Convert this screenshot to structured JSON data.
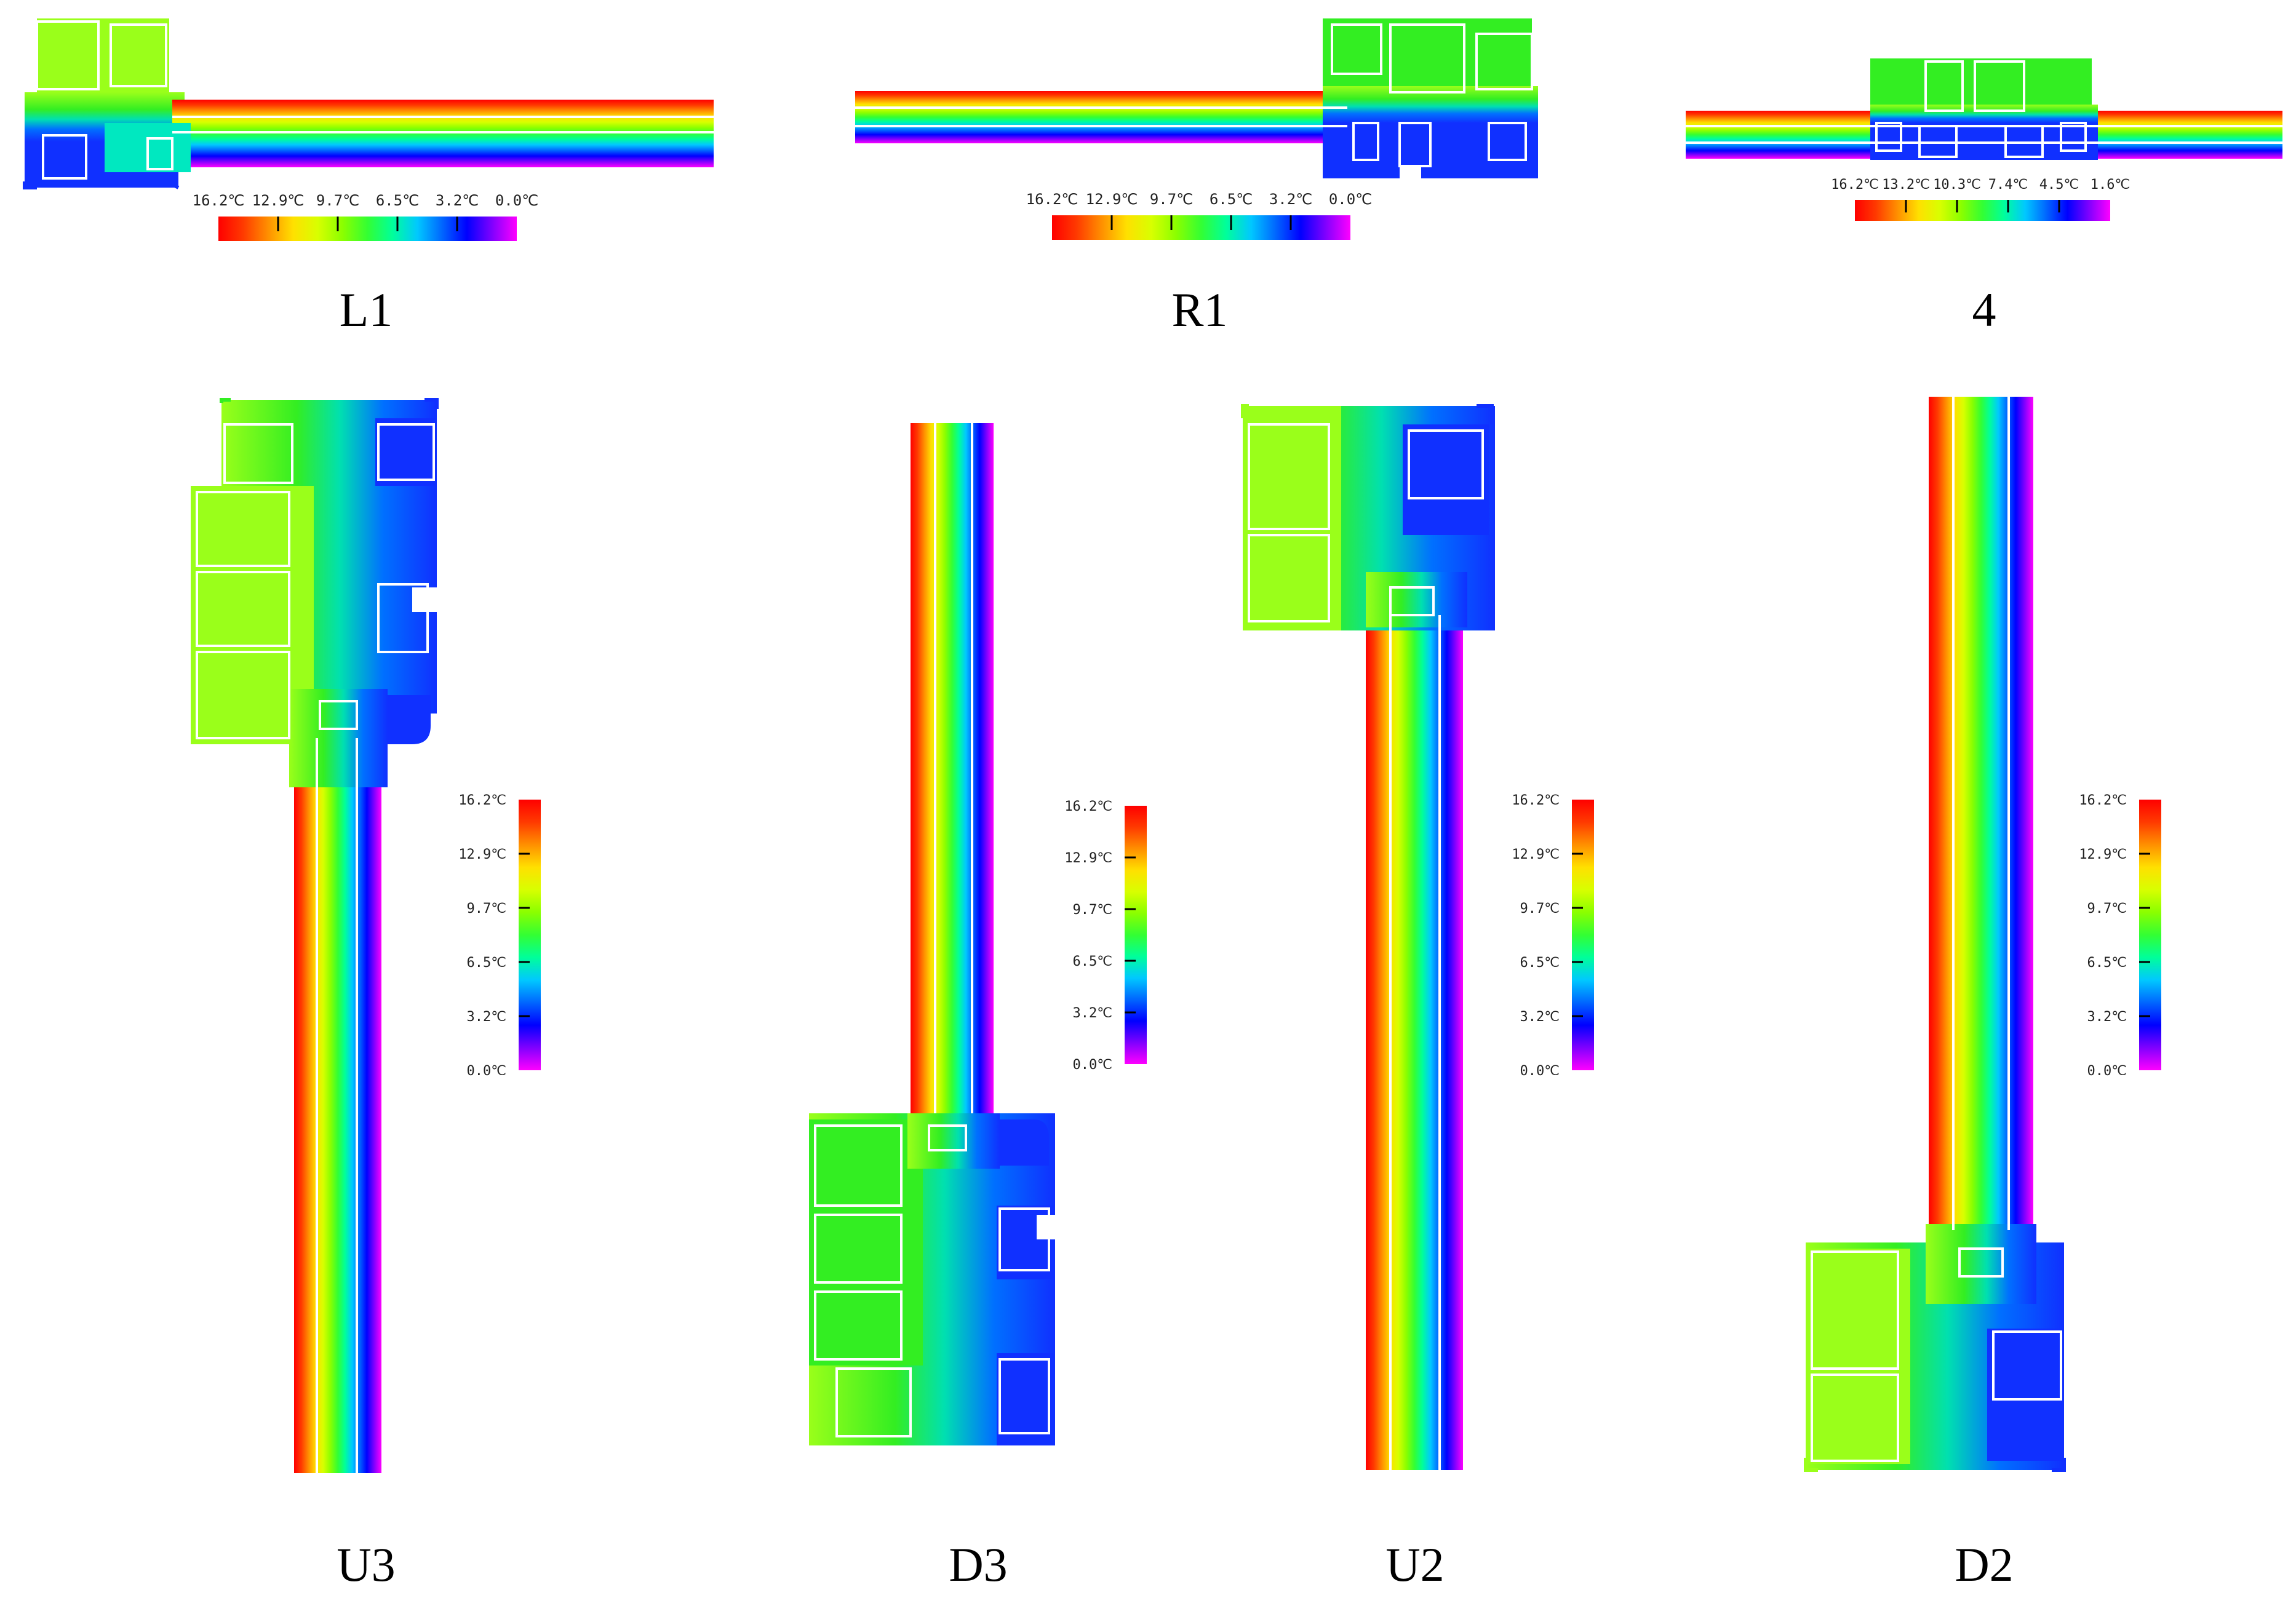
{
  "colors": {
    "scale": [
      "#ff00ff",
      "#8000ff",
      "#0000ff",
      "#0066ff",
      "#00c8ff",
      "#00ff9a",
      "#33ff33",
      "#8aff00",
      "#d8ff00",
      "#ffe000",
      "#ff9000",
      "#ff3a00",
      "#ff0000"
    ],
    "frame_green": "#33ee22",
    "frame_yellowgreen": "#9aff1a",
    "frame_blue": "#1030ff",
    "frame_outline": "#ffffff"
  },
  "scale_labels_a": [
    "16.2℃",
    "12.9℃",
    "9.7℃",
    "6.5℃",
    "3.2℃",
    "0.0℃"
  ],
  "scale_labels_b": [
    "16.2℃",
    "13.2℃",
    "10.3℃",
    "7.4℃",
    "4.5℃",
    "1.6℃"
  ],
  "panels": [
    {
      "id": "L1",
      "label": "L1"
    },
    {
      "id": "R1",
      "label": "R1"
    },
    {
      "id": "4",
      "label": "4"
    },
    {
      "id": "U3",
      "label": "U3"
    },
    {
      "id": "D3",
      "label": "D3"
    },
    {
      "id": "U2",
      "label": "U2"
    },
    {
      "id": "D2",
      "label": "D2"
    }
  ]
}
